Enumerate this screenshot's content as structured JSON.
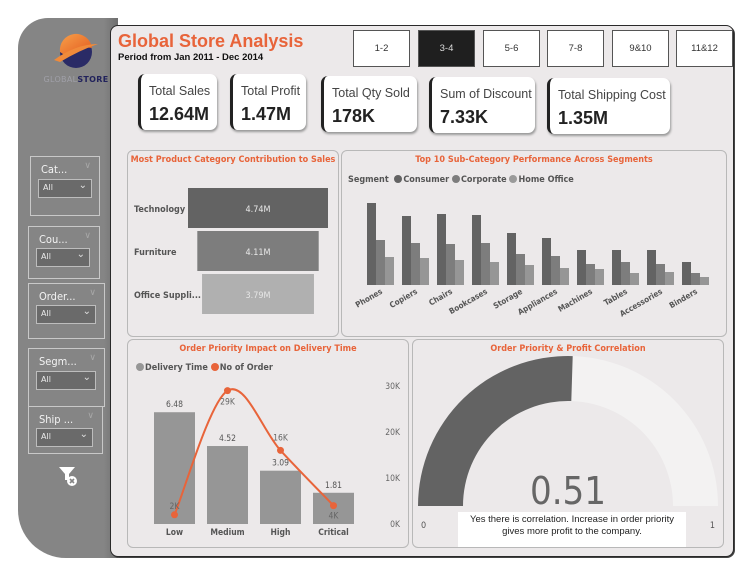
{
  "brand": {
    "logo_text_light": "GLOBAL",
    "logo_text_bold": "STORE"
  },
  "header": {
    "title": "Global Store Analysis",
    "subtitle": "Period from Jan 2011 - Dec 2014"
  },
  "nav": {
    "buttons": [
      {
        "label": "1-2",
        "active": false
      },
      {
        "label": "3-4",
        "active": true
      },
      {
        "label": "5-6",
        "active": false
      },
      {
        "label": "7-8",
        "active": false
      },
      {
        "label": "9&10",
        "active": false
      },
      {
        "label": "11&12",
        "active": false
      }
    ]
  },
  "kpis": [
    {
      "label": "Total Sales",
      "value": "12.64M"
    },
    {
      "label": "Total Profit",
      "value": "1.47M"
    },
    {
      "label": "Total Qty Sold",
      "value": "178K"
    },
    {
      "label": "Sum of Discount",
      "value": "7.33K"
    },
    {
      "label": "Total Shipping Cost",
      "value": "1.35M"
    }
  ],
  "slicers": [
    {
      "label": "Cat...",
      "value": "All"
    },
    {
      "label": "Cou...",
      "value": "All"
    },
    {
      "label": "Order...",
      "value": "All"
    },
    {
      "label": "Segm...",
      "value": "All"
    },
    {
      "label": "Ship ...",
      "value": "All"
    }
  ],
  "icons": {
    "clear_filter": "clear-filter-icon",
    "slicer_chevron": "chevron-down-icon",
    "logo": "globe-logo-icon"
  },
  "colors": {
    "accent": "#e8643a",
    "dark_bar": "#636363",
    "mid_bar": "#7d7d7d",
    "light_bar": "#a9a9a9",
    "sidebar": "#858585",
    "gauge_fill": "#636363",
    "gauge_track": "#f3f2f2"
  },
  "chart_data": [
    {
      "type": "bar",
      "orientation": "horizontal-funnel",
      "title": "Most Product Category Contribution to Sales",
      "categories": [
        "Technology",
        "Furniture",
        "Office Suppli..."
      ],
      "values": [
        4.74,
        4.11,
        3.79
      ],
      "labels": [
        "4.74M",
        "4.11M",
        "3.79M"
      ],
      "unit": "M"
    },
    {
      "type": "bar",
      "title": "Top 10 Sub-Category Performance Across Segments",
      "legend_title": "Segment",
      "legend_position": "top-left",
      "categories": [
        "Phones",
        "Copiers",
        "Chairs",
        "Bookcases",
        "Storage",
        "Appliances",
        "Machines",
        "Tables",
        "Accessories",
        "Binders"
      ],
      "series": [
        {
          "name": "Consumer",
          "values": [
            82,
            69,
            71,
            70,
            52,
            47,
            35,
            35,
            35,
            23
          ]
        },
        {
          "name": "Corporate",
          "values": [
            45,
            42,
            41,
            42,
            31,
            29,
            21,
            23,
            21,
            12
          ]
        },
        {
          "name": "Home Office",
          "values": [
            28,
            27,
            25,
            23,
            20,
            17,
            16,
            12,
            13,
            8
          ]
        }
      ],
      "note": "relative heights, no axis shown"
    },
    {
      "type": "bar",
      "combo": "bar+line",
      "title": "Order Priority Impact on Delivery Time",
      "legend_position": "top-left",
      "categories": [
        "Low",
        "Medium",
        "High",
        "Critical"
      ],
      "series": [
        {
          "name": "Delivery Time",
          "type": "bar",
          "values": [
            6.48,
            4.52,
            3.09,
            1.81
          ],
          "labels": [
            "6.48",
            "4.52",
            "3.09",
            "1.81"
          ]
        },
        {
          "name": "No of Order",
          "type": "line",
          "values": [
            2000,
            29000,
            16000,
            4000
          ],
          "labels": [
            "2K",
            "29K",
            "16K",
            "4K"
          ]
        }
      ],
      "y2_ticks": [
        "0K",
        "10K",
        "20K",
        "30K"
      ],
      "y2lim": [
        0,
        30000
      ],
      "ylim": [
        0,
        8
      ]
    },
    {
      "type": "gauge",
      "title": "Order Priority & Profit Correlation",
      "value": 0.51,
      "value_label": "0.51",
      "min": 0,
      "max": 1,
      "min_label": "0",
      "max_label": "1",
      "annotation": "Yes there is correlation. Increase in order priority gives more profit to the company."
    }
  ]
}
